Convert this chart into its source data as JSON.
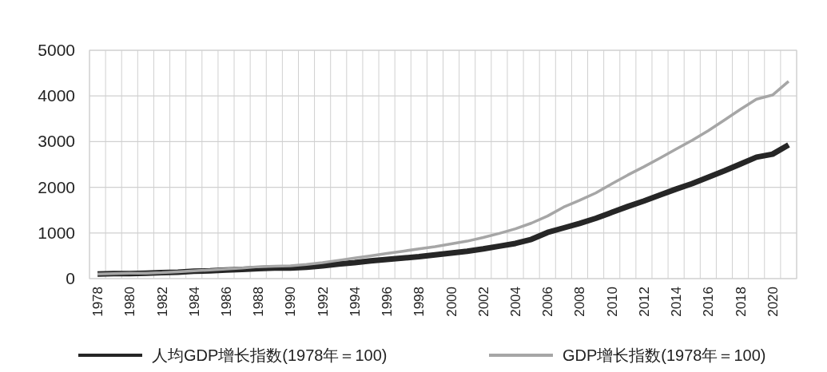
{
  "chart_data": {
    "type": "line",
    "categories": [
      "1978",
      null,
      "1980",
      null,
      "1982",
      null,
      "1984",
      null,
      "1986",
      null,
      "1988",
      null,
      "1990",
      null,
      "1992",
      null,
      "1994",
      null,
      "1996",
      null,
      "1998",
      null,
      "2000",
      null,
      "2002",
      null,
      "2004",
      null,
      "2006",
      null,
      "2008",
      null,
      "2010",
      null,
      "2012",
      null,
      "2014",
      null,
      "2016",
      null,
      "2018",
      null,
      "2020",
      null
    ],
    "series": [
      {
        "name": "人均GDP增长指数(1978年＝100)",
        "color": "#262626",
        "values": [
          100,
          110,
          110,
          120,
          130,
          140,
          160,
          170,
          190,
          200,
          220,
          230,
          230,
          250,
          280,
          320,
          350,
          390,
          420,
          450,
          480,
          520,
          560,
          600,
          650,
          710,
          770,
          860,
          1010,
          1110,
          1210,
          1320,
          1450,
          1580,
          1700,
          1830,
          1960,
          2080,
          2220,
          2360,
          2510,
          2660,
          2725,
          2930
        ]
      },
      {
        "name": "GDP增长指数(1978年＝100)",
        "color": "#a6a6a6",
        "values": [
          100,
          110,
          120,
          120,
          130,
          150,
          170,
          190,
          210,
          230,
          260,
          270,
          280,
          310,
          350,
          400,
          450,
          500,
          550,
          600,
          650,
          700,
          760,
          820,
          900,
          990,
          1090,
          1215,
          1370,
          1565,
          1715,
          1875,
          2075,
          2270,
          2450,
          2640,
          2835,
          3030,
          3240,
          3470,
          3705,
          3930,
          4020,
          4320
        ]
      }
    ],
    "ylim": [
      0,
      5000
    ],
    "yticks": [
      0,
      1000,
      2000,
      3000,
      4000,
      5000
    ],
    "grid": true,
    "legend": "bottom"
  }
}
